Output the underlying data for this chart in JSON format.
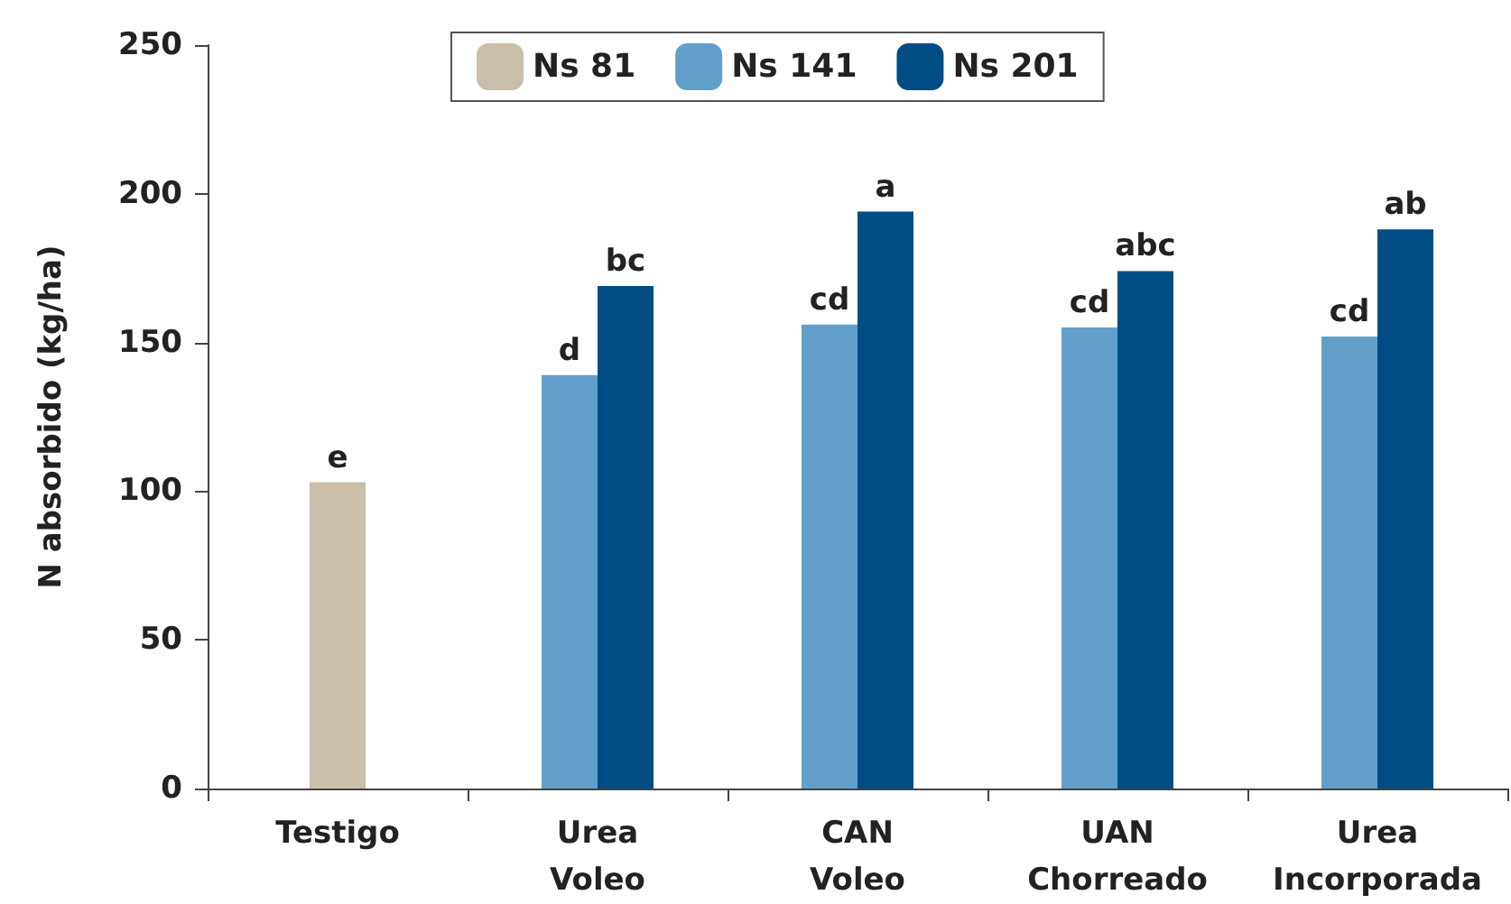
{
  "chart_data": {
    "type": "bar",
    "ylabel": "N absorbido (kg/ha)",
    "categories": [
      "Testigo",
      "Urea\nVoleo",
      "CAN\nVoleo",
      "UAN\nChorreado",
      "Urea\nIncorporada"
    ],
    "series": [
      {
        "name": "Ns 81",
        "color": "#c9bfaa",
        "values": [
          103,
          null,
          null,
          null,
          null
        ],
        "value_labels": [
          "e",
          null,
          null,
          null,
          null
        ]
      },
      {
        "name": "Ns 141",
        "color": "#62a0cb",
        "values": [
          null,
          139,
          156,
          155,
          152
        ],
        "value_labels": [
          null,
          "d",
          "cd",
          "cd",
          "cd"
        ]
      },
      {
        "name": "Ns 201",
        "color": "#004d86",
        "values": [
          null,
          169,
          194,
          174,
          188
        ],
        "value_labels": [
          null,
          "bc",
          "a",
          "abc",
          "ab"
        ]
      }
    ],
    "ylim": [
      0,
      250
    ],
    "yticks": [
      0,
      50,
      100,
      150,
      200,
      250
    ],
    "grid": false,
    "legend": "top"
  }
}
